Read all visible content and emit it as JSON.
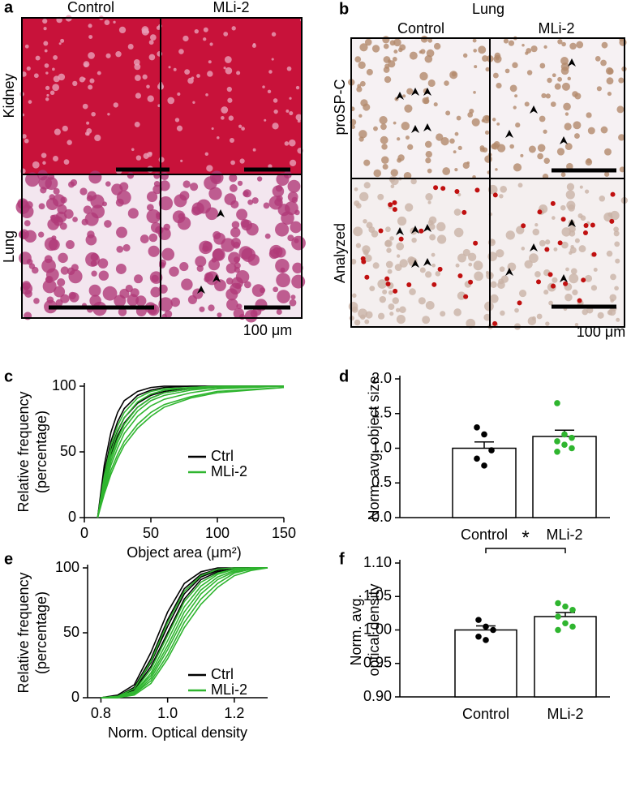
{
  "images": {
    "a": {
      "label": "a",
      "columns": [
        "Control",
        "MLi-2"
      ],
      "rows": [
        "Kidney",
        "Lung"
      ],
      "scale": "100 μm"
    },
    "b": {
      "label": "b",
      "title": "Lung",
      "columns": [
        "Control",
        "MLi-2"
      ],
      "rows": [
        "proSP-C",
        "Analyzed"
      ],
      "scale": "100 μm"
    }
  },
  "chart_data": [
    {
      "type": "line",
      "label": "c",
      "xlabel": "Object area (μm²)",
      "ylabel": [
        "Relative frequency",
        "(percentage)"
      ],
      "x": [
        10,
        15,
        20,
        25,
        30,
        40,
        50,
        60,
        80,
        100,
        150
      ],
      "xlim": [
        0,
        150
      ],
      "xticks": [
        0,
        50,
        100,
        150
      ],
      "ylim": [
        0,
        100
      ],
      "yticks": [
        0,
        50,
        100
      ],
      "series": [
        {
          "name": "Ctrl",
          "color": "#000000",
          "curves": [
            [
              0,
              40,
              65,
              80,
              89,
              96,
              99,
              100,
              100,
              100,
              100
            ],
            [
              0,
              35,
              58,
              73,
              83,
              93,
              97,
              99,
              100,
              100,
              100
            ],
            [
              0,
              30,
              52,
              66,
              76,
              87,
              93,
              96,
              99,
              100,
              100
            ],
            [
              0,
              28,
              48,
              62,
              72,
              84,
              91,
              95,
              98,
              99,
              100
            ]
          ]
        },
        {
          "name": "MLi-2",
          "color": "#2fb52f",
          "curves": [
            [
              0,
              32,
              55,
              70,
              80,
              91,
              96,
              98,
              99,
              100,
              100
            ],
            [
              0,
              28,
              50,
              65,
              76,
              88,
              94,
              97,
              99,
              100,
              100
            ],
            [
              0,
              26,
              46,
              60,
              71,
              84,
              91,
              95,
              98,
              99,
              100
            ],
            [
              0,
              24,
              43,
              57,
              68,
              81,
              89,
              93,
              97,
              99,
              100
            ],
            [
              0,
              22,
              40,
              53,
              64,
              77,
              85,
              90,
              95,
              98,
              100
            ],
            [
              0,
              20,
              36,
              48,
              58,
              71,
              80,
              86,
              92,
              96,
              99
            ],
            [
              0,
              18,
              33,
              45,
              55,
              68,
              77,
              84,
              91,
              95,
              99
            ]
          ]
        }
      ]
    },
    {
      "type": "bar",
      "label": "d",
      "ylabel": [
        "Norm. avg. object size"
      ],
      "categories": [
        "Control",
        "MLi-2"
      ],
      "values": [
        1.0,
        1.17
      ],
      "errors": [
        0.09,
        0.09
      ],
      "colors": [
        "#000000",
        "#2fb52f"
      ],
      "points": [
        [
          1.3,
          1.2,
          0.97,
          0.85,
          0.75
        ],
        [
          1.65,
          1.2,
          1.15,
          1.1,
          1.05,
          1.0,
          0.95
        ]
      ],
      "ylim": [
        0,
        2
      ],
      "yticks": [
        {
          "value": 0,
          "label": "0.0"
        },
        0.5,
        {
          "value": 1,
          "label": "1.0"
        },
        1.5,
        {
          "value": 2,
          "label": "2.0"
        }
      ]
    },
    {
      "type": "line",
      "label": "e",
      "xlabel": "Norm. Optical density",
      "ylabel": [
        "Relative frequency",
        "(percentage)"
      ],
      "x": [
        0.8,
        0.85,
        0.9,
        0.95,
        1.0,
        1.05,
        1.1,
        1.15,
        1.2,
        1.25,
        1.3
      ],
      "xlim": [
        0.76,
        1.3
      ],
      "xticks": [
        0.8,
        {
          "value": 1,
          "label": "1.0"
        },
        1.2
      ],
      "ylim": [
        0,
        100
      ],
      "yticks": [
        0,
        50,
        100
      ],
      "series": [
        {
          "name": "Ctrl",
          "color": "#000000",
          "curves": [
            [
              0,
              2,
              10,
              35,
              66,
              88,
              97,
              100,
              100,
              100,
              100
            ],
            [
              0,
              1,
              8,
              30,
              60,
              84,
              95,
              99,
              100,
              100,
              100
            ],
            [
              0,
              1,
              7,
              27,
              55,
              80,
              93,
              98,
              100,
              100,
              100
            ],
            [
              0,
              1,
              6,
              24,
              50,
              76,
              91,
              97,
              99,
              100,
              100
            ]
          ]
        },
        {
          "name": "MLi-2",
          "color": "#2fb52f",
          "curves": [
            [
              0,
              1,
              7,
              28,
              58,
              82,
              94,
              99,
              100,
              100,
              100
            ],
            [
              0,
              1,
              5,
              22,
              48,
              74,
              89,
              96,
              99,
              100,
              100
            ],
            [
              0,
              1,
              4,
              19,
              44,
              70,
              86,
              95,
              99,
              100,
              100
            ],
            [
              0,
              0,
              4,
              17,
              40,
              66,
              83,
              93,
              98,
              100,
              100
            ],
            [
              0,
              0,
              3,
              15,
              37,
              62,
              80,
              91,
              97,
              99,
              100
            ],
            [
              0,
              0,
              3,
              13,
              33,
              58,
              76,
              88,
              96,
              99,
              100
            ],
            [
              0,
              0,
              2,
              11,
              30,
              54,
              72,
              85,
              94,
              98,
              100
            ]
          ]
        }
      ]
    },
    {
      "type": "bar",
      "label": "f",
      "ylabel": [
        "Norm. avg.",
        "optical density"
      ],
      "annotation": "*",
      "categories": [
        "Control",
        "MLi-2"
      ],
      "values": [
        1.0,
        1.02
      ],
      "errors": [
        0.006,
        0.006
      ],
      "colors": [
        "#000000",
        "#2fb52f"
      ],
      "points": [
        [
          1.015,
          1.005,
          1.0,
          0.99,
          0.985
        ],
        [
          1.04,
          1.035,
          1.03,
          1.02,
          1.01,
          1.005,
          1.0
        ]
      ],
      "ylim": [
        0.9,
        1.1
      ],
      "yticks": [
        {
          "value": 0.9,
          "label": "0.90"
        },
        0.95,
        {
          "value": 1,
          "label": "1.00"
        },
        {
          "value": 1.05,
          "label": "1.05"
        },
        {
          "value": 1.1,
          "label": "1.10"
        }
      ]
    }
  ]
}
